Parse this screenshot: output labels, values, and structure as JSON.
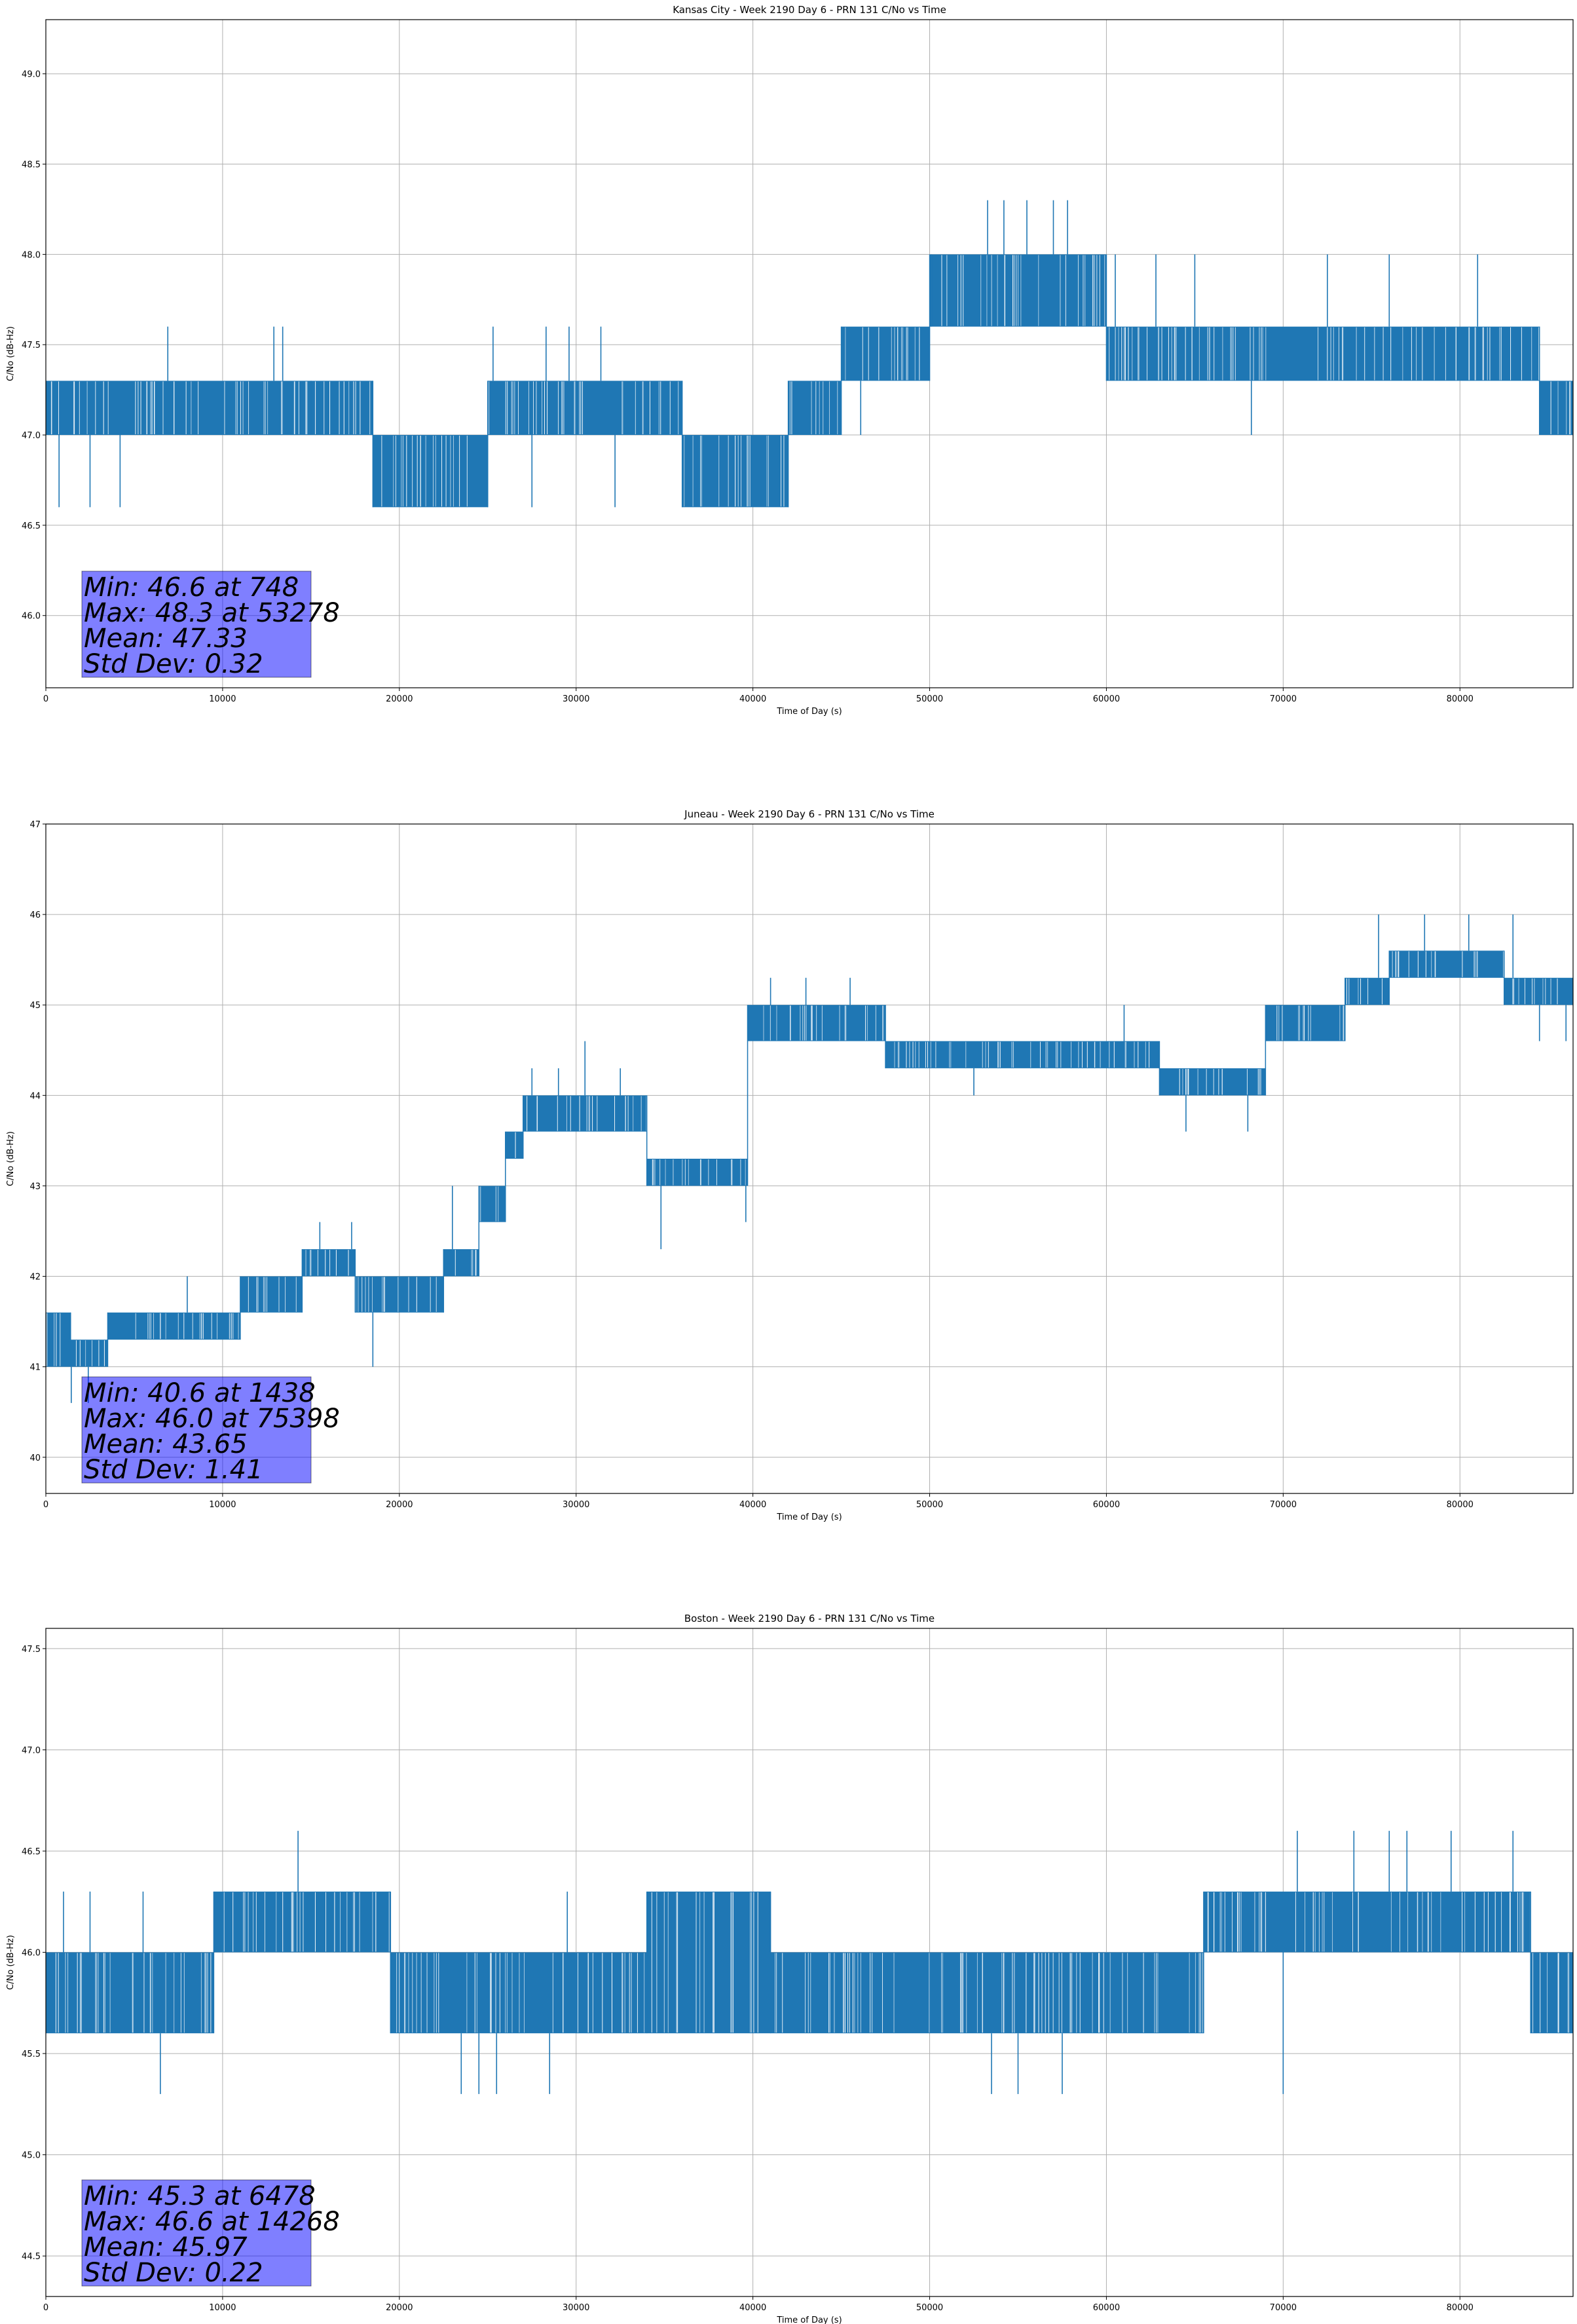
{
  "chart_data": [
    {
      "type": "line",
      "title": "Kansas City - Week 2190 Day 6 - PRN 131 C/No vs Time",
      "xlabel": "Time of Day (s)",
      "ylabel": "C/No (dB-Hz)",
      "xlim": [
        0,
        86400
      ],
      "ylim": [
        45.6,
        49.3
      ],
      "xticks": [
        0,
        10000,
        20000,
        30000,
        40000,
        50000,
        60000,
        70000,
        80000
      ],
      "xtick_labels": [
        "0",
        "10000",
        "20000",
        "30000",
        "40000",
        "50000",
        "60000",
        "70000",
        "80000"
      ],
      "yticks": [
        46.0,
        46.5,
        47.0,
        47.5,
        48.0,
        48.5,
        49.0
      ],
      "ytick_labels": [
        "46.0",
        "46.5",
        "47.0",
        "47.5",
        "48.0",
        "48.5",
        "49.0"
      ],
      "grid": true,
      "series_color": "#1f77b4",
      "bands": [
        {
          "x0": 0,
          "x1": 15000,
          "lo": 47.0,
          "hi": 47.3
        },
        {
          "x0": 15000,
          "x1": 18500,
          "lo": 47.0,
          "hi": 47.3
        },
        {
          "x0": 18500,
          "x1": 25000,
          "lo": 46.6,
          "hi": 47.0
        },
        {
          "x0": 25000,
          "x1": 36000,
          "lo": 47.0,
          "hi": 47.3
        },
        {
          "x0": 36000,
          "x1": 42000,
          "lo": 46.6,
          "hi": 47.0
        },
        {
          "x0": 42000,
          "x1": 45000,
          "lo": 47.0,
          "hi": 47.3
        },
        {
          "x0": 45000,
          "x1": 50000,
          "lo": 47.3,
          "hi": 47.6
        },
        {
          "x0": 50000,
          "x1": 60000,
          "lo": 47.6,
          "hi": 48.0
        },
        {
          "x0": 60000,
          "x1": 84500,
          "lo": 47.3,
          "hi": 47.6
        },
        {
          "x0": 84500,
          "x1": 86400,
          "lo": 47.0,
          "hi": 47.3
        }
      ],
      "spikes": [
        {
          "x": 748,
          "y": 46.6
        },
        {
          "x": 2500,
          "y": 46.6
        },
        {
          "x": 4200,
          "y": 46.6
        },
        {
          "x": 6900,
          "y": 47.6
        },
        {
          "x": 12900,
          "y": 47.6
        },
        {
          "x": 13400,
          "y": 47.6
        },
        {
          "x": 25300,
          "y": 47.6
        },
        {
          "x": 27500,
          "y": 46.6
        },
        {
          "x": 28300,
          "y": 47.6
        },
        {
          "x": 29600,
          "y": 47.6
        },
        {
          "x": 31400,
          "y": 47.6
        },
        {
          "x": 32200,
          "y": 46.6
        },
        {
          "x": 46100,
          "y": 47.0
        },
        {
          "x": 50100,
          "y": 48.0
        },
        {
          "x": 53278,
          "y": 48.3
        },
        {
          "x": 54200,
          "y": 48.3
        },
        {
          "x": 55500,
          "y": 48.3
        },
        {
          "x": 57000,
          "y": 48.3
        },
        {
          "x": 57800,
          "y": 48.3
        },
        {
          "x": 60500,
          "y": 48.0
        },
        {
          "x": 62800,
          "y": 48.0
        },
        {
          "x": 65000,
          "y": 48.0
        },
        {
          "x": 68200,
          "y": 47.0
        },
        {
          "x": 72500,
          "y": 48.0
        },
        {
          "x": 76000,
          "y": 48.0
        },
        {
          "x": 81000,
          "y": 48.0
        }
      ],
      "stats": [
        "Min: 46.6 at 748",
        "Max: 48.3 at 53278",
        "Mean: 47.33",
        "Std Dev: 0.32"
      ]
    },
    {
      "type": "line",
      "title": "Juneau - Week 2190 Day 6 - PRN 131 C/No vs Time",
      "xlabel": "Time of Day (s)",
      "ylabel": "C/No (dB-Hz)",
      "xlim": [
        0,
        86400
      ],
      "ylim": [
        39.6,
        47.0
      ],
      "xticks": [
        0,
        10000,
        20000,
        30000,
        40000,
        50000,
        60000,
        70000,
        80000
      ],
      "xtick_labels": [
        "0",
        "10000",
        "20000",
        "30000",
        "40000",
        "50000",
        "60000",
        "70000",
        "80000"
      ],
      "yticks": [
        40,
        41,
        42,
        43,
        44,
        45,
        46,
        47
      ],
      "ytick_labels": [
        "40",
        "41",
        "42",
        "43",
        "44",
        "45",
        "46",
        "47"
      ],
      "grid": true,
      "series_color": "#1f77b4",
      "bands": [
        {
          "x0": 0,
          "x1": 1400,
          "lo": 41.0,
          "hi": 41.6
        },
        {
          "x0": 1400,
          "x1": 3500,
          "lo": 41.0,
          "hi": 41.3
        },
        {
          "x0": 3500,
          "x1": 11000,
          "lo": 41.3,
          "hi": 41.6
        },
        {
          "x0": 11000,
          "x1": 14500,
          "lo": 41.6,
          "hi": 42.0
        },
        {
          "x0": 14500,
          "x1": 17500,
          "lo": 42.0,
          "hi": 42.3
        },
        {
          "x0": 17500,
          "x1": 22500,
          "lo": 41.6,
          "hi": 42.0
        },
        {
          "x0": 22500,
          "x1": 24500,
          "lo": 42.0,
          "hi": 42.3
        },
        {
          "x0": 24500,
          "x1": 26000,
          "lo": 42.6,
          "hi": 43.0
        },
        {
          "x0": 26000,
          "x1": 27000,
          "lo": 43.3,
          "hi": 43.6
        },
        {
          "x0": 27000,
          "x1": 31000,
          "lo": 43.6,
          "hi": 44.0
        },
        {
          "x0": 31000,
          "x1": 34000,
          "lo": 43.6,
          "hi": 44.0
        },
        {
          "x0": 34000,
          "x1": 39700,
          "lo": 43.0,
          "hi": 43.3
        },
        {
          "x0": 39700,
          "x1": 47500,
          "lo": 44.6,
          "hi": 45.0
        },
        {
          "x0": 47500,
          "x1": 59000,
          "lo": 44.3,
          "hi": 44.6
        },
        {
          "x0": 59000,
          "x1": 63000,
          "lo": 44.3,
          "hi": 44.6
        },
        {
          "x0": 63000,
          "x1": 69000,
          "lo": 44.0,
          "hi": 44.3
        },
        {
          "x0": 69000,
          "x1": 73500,
          "lo": 44.6,
          "hi": 45.0
        },
        {
          "x0": 73500,
          "x1": 76000,
          "lo": 45.0,
          "hi": 45.3
        },
        {
          "x0": 76000,
          "x1": 82500,
          "lo": 45.3,
          "hi": 45.6
        },
        {
          "x0": 82500,
          "x1": 86400,
          "lo": 45.0,
          "hi": 45.3
        }
      ],
      "spikes": [
        {
          "x": 1438,
          "y": 40.6
        },
        {
          "x": 2400,
          "y": 40.6
        },
        {
          "x": 8000,
          "y": 42.0
        },
        {
          "x": 15500,
          "y": 42.6
        },
        {
          "x": 17300,
          "y": 42.6
        },
        {
          "x": 18500,
          "y": 41.0
        },
        {
          "x": 23000,
          "y": 43.0
        },
        {
          "x": 27500,
          "y": 44.3
        },
        {
          "x": 29000,
          "y": 44.3
        },
        {
          "x": 30500,
          "y": 44.6
        },
        {
          "x": 32500,
          "y": 44.3
        },
        {
          "x": 34800,
          "y": 42.3
        },
        {
          "x": 39600,
          "y": 42.6
        },
        {
          "x": 41000,
          "y": 45.3
        },
        {
          "x": 43000,
          "y": 45.3
        },
        {
          "x": 45500,
          "y": 45.3
        },
        {
          "x": 52500,
          "y": 44.0
        },
        {
          "x": 61000,
          "y": 45.0
        },
        {
          "x": 64500,
          "y": 43.6
        },
        {
          "x": 68000,
          "y": 43.6
        },
        {
          "x": 75398,
          "y": 46.0
        },
        {
          "x": 78000,
          "y": 46.0
        },
        {
          "x": 80500,
          "y": 46.0
        },
        {
          "x": 83000,
          "y": 46.0
        },
        {
          "x": 84500,
          "y": 44.6
        },
        {
          "x": 86000,
          "y": 44.6
        }
      ],
      "stats": [
        "Min: 40.6 at 1438",
        "Max: 46.0 at 75398",
        "Mean: 43.65",
        "Std Dev: 1.41"
      ]
    },
    {
      "type": "line",
      "title": "Boston - Week 2190 Day 6 - PRN 131 C/No vs Time",
      "xlabel": "Time of Day (s)",
      "ylabel": "C/No (dB-Hz)",
      "xlim": [
        0,
        86400
      ],
      "ylim": [
        44.3,
        47.6
      ],
      "xticks": [
        0,
        10000,
        20000,
        30000,
        40000,
        50000,
        60000,
        70000,
        80000
      ],
      "xtick_labels": [
        "0",
        "10000",
        "20000",
        "30000",
        "40000",
        "50000",
        "60000",
        "70000",
        "80000"
      ],
      "yticks": [
        44.5,
        45.0,
        45.5,
        46.0,
        46.5,
        47.0,
        47.5
      ],
      "ytick_labels": [
        "44.5",
        "45.0",
        "45.5",
        "46.0",
        "46.5",
        "47.0",
        "47.5"
      ],
      "grid": true,
      "series_color": "#1f77b4",
      "bands": [
        {
          "x0": 0,
          "x1": 9500,
          "lo": 45.6,
          "hi": 46.0
        },
        {
          "x0": 9500,
          "x1": 19500,
          "lo": 46.0,
          "hi": 46.3
        },
        {
          "x0": 19500,
          "x1": 34000,
          "lo": 45.6,
          "hi": 46.0
        },
        {
          "x0": 34000,
          "x1": 41000,
          "lo": 45.6,
          "hi": 46.3
        },
        {
          "x0": 41000,
          "x1": 65500,
          "lo": 45.6,
          "hi": 46.0
        },
        {
          "x0": 65500,
          "x1": 84000,
          "lo": 46.0,
          "hi": 46.3
        },
        {
          "x0": 84000,
          "x1": 86400,
          "lo": 45.6,
          "hi": 46.0
        }
      ],
      "spikes": [
        {
          "x": 1000,
          "y": 46.3
        },
        {
          "x": 2500,
          "y": 46.3
        },
        {
          "x": 5500,
          "y": 46.3
        },
        {
          "x": 6478,
          "y": 45.3
        },
        {
          "x": 14268,
          "y": 46.6
        },
        {
          "x": 23500,
          "y": 45.3
        },
        {
          "x": 24500,
          "y": 45.3
        },
        {
          "x": 25500,
          "y": 45.3
        },
        {
          "x": 28500,
          "y": 45.3
        },
        {
          "x": 29500,
          "y": 46.3
        },
        {
          "x": 53500,
          "y": 45.3
        },
        {
          "x": 55000,
          "y": 45.3
        },
        {
          "x": 57500,
          "y": 45.3
        },
        {
          "x": 70000,
          "y": 45.3
        },
        {
          "x": 70800,
          "y": 46.6
        },
        {
          "x": 74000,
          "y": 46.6
        },
        {
          "x": 76000,
          "y": 46.6
        },
        {
          "x": 77000,
          "y": 46.6
        },
        {
          "x": 79500,
          "y": 46.6
        },
        {
          "x": 83000,
          "y": 46.6
        }
      ],
      "stats": [
        "Min: 45.3 at 6478",
        "Max: 46.6 at 14268",
        "Mean: 45.97",
        "Std Dev: 0.22"
      ]
    }
  ]
}
